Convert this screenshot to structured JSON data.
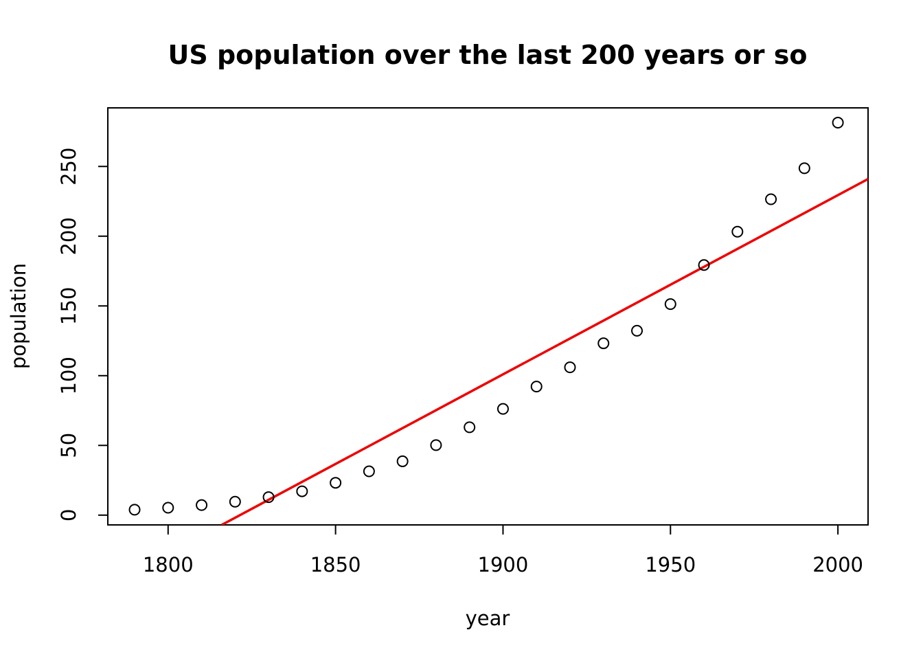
{
  "chart_data": {
    "type": "scatter",
    "title": "US population over the last 200 years or so",
    "xlabel": "year",
    "ylabel": "population",
    "xlim": [
      1782,
      2009
    ],
    "ylim": [
      -7,
      292
    ],
    "xticks": [
      1800,
      1850,
      1900,
      1950,
      2000
    ],
    "yticks": [
      0,
      50,
      100,
      150,
      200,
      250
    ],
    "grid": false,
    "legend": "none",
    "series": [
      {
        "kind": "points",
        "marker": "open-circle",
        "color": "#000000",
        "x": [
          1790,
          1800,
          1810,
          1820,
          1830,
          1840,
          1850,
          1860,
          1870,
          1880,
          1890,
          1900,
          1910,
          1920,
          1930,
          1940,
          1950,
          1960,
          1970,
          1980,
          1990,
          2000
        ],
        "y": [
          3.9,
          5.3,
          7.2,
          9.6,
          12.9,
          17.1,
          23.2,
          31.4,
          38.6,
          50.2,
          63.0,
          76.2,
          92.2,
          106.0,
          123.2,
          132.2,
          151.3,
          179.3,
          203.2,
          226.5,
          248.7,
          281.4
        ]
      },
      {
        "kind": "fit-line",
        "color": "#ee0000",
        "x": [
          1816,
          2009
        ],
        "y": [
          -7,
          241
        ]
      }
    ]
  }
}
